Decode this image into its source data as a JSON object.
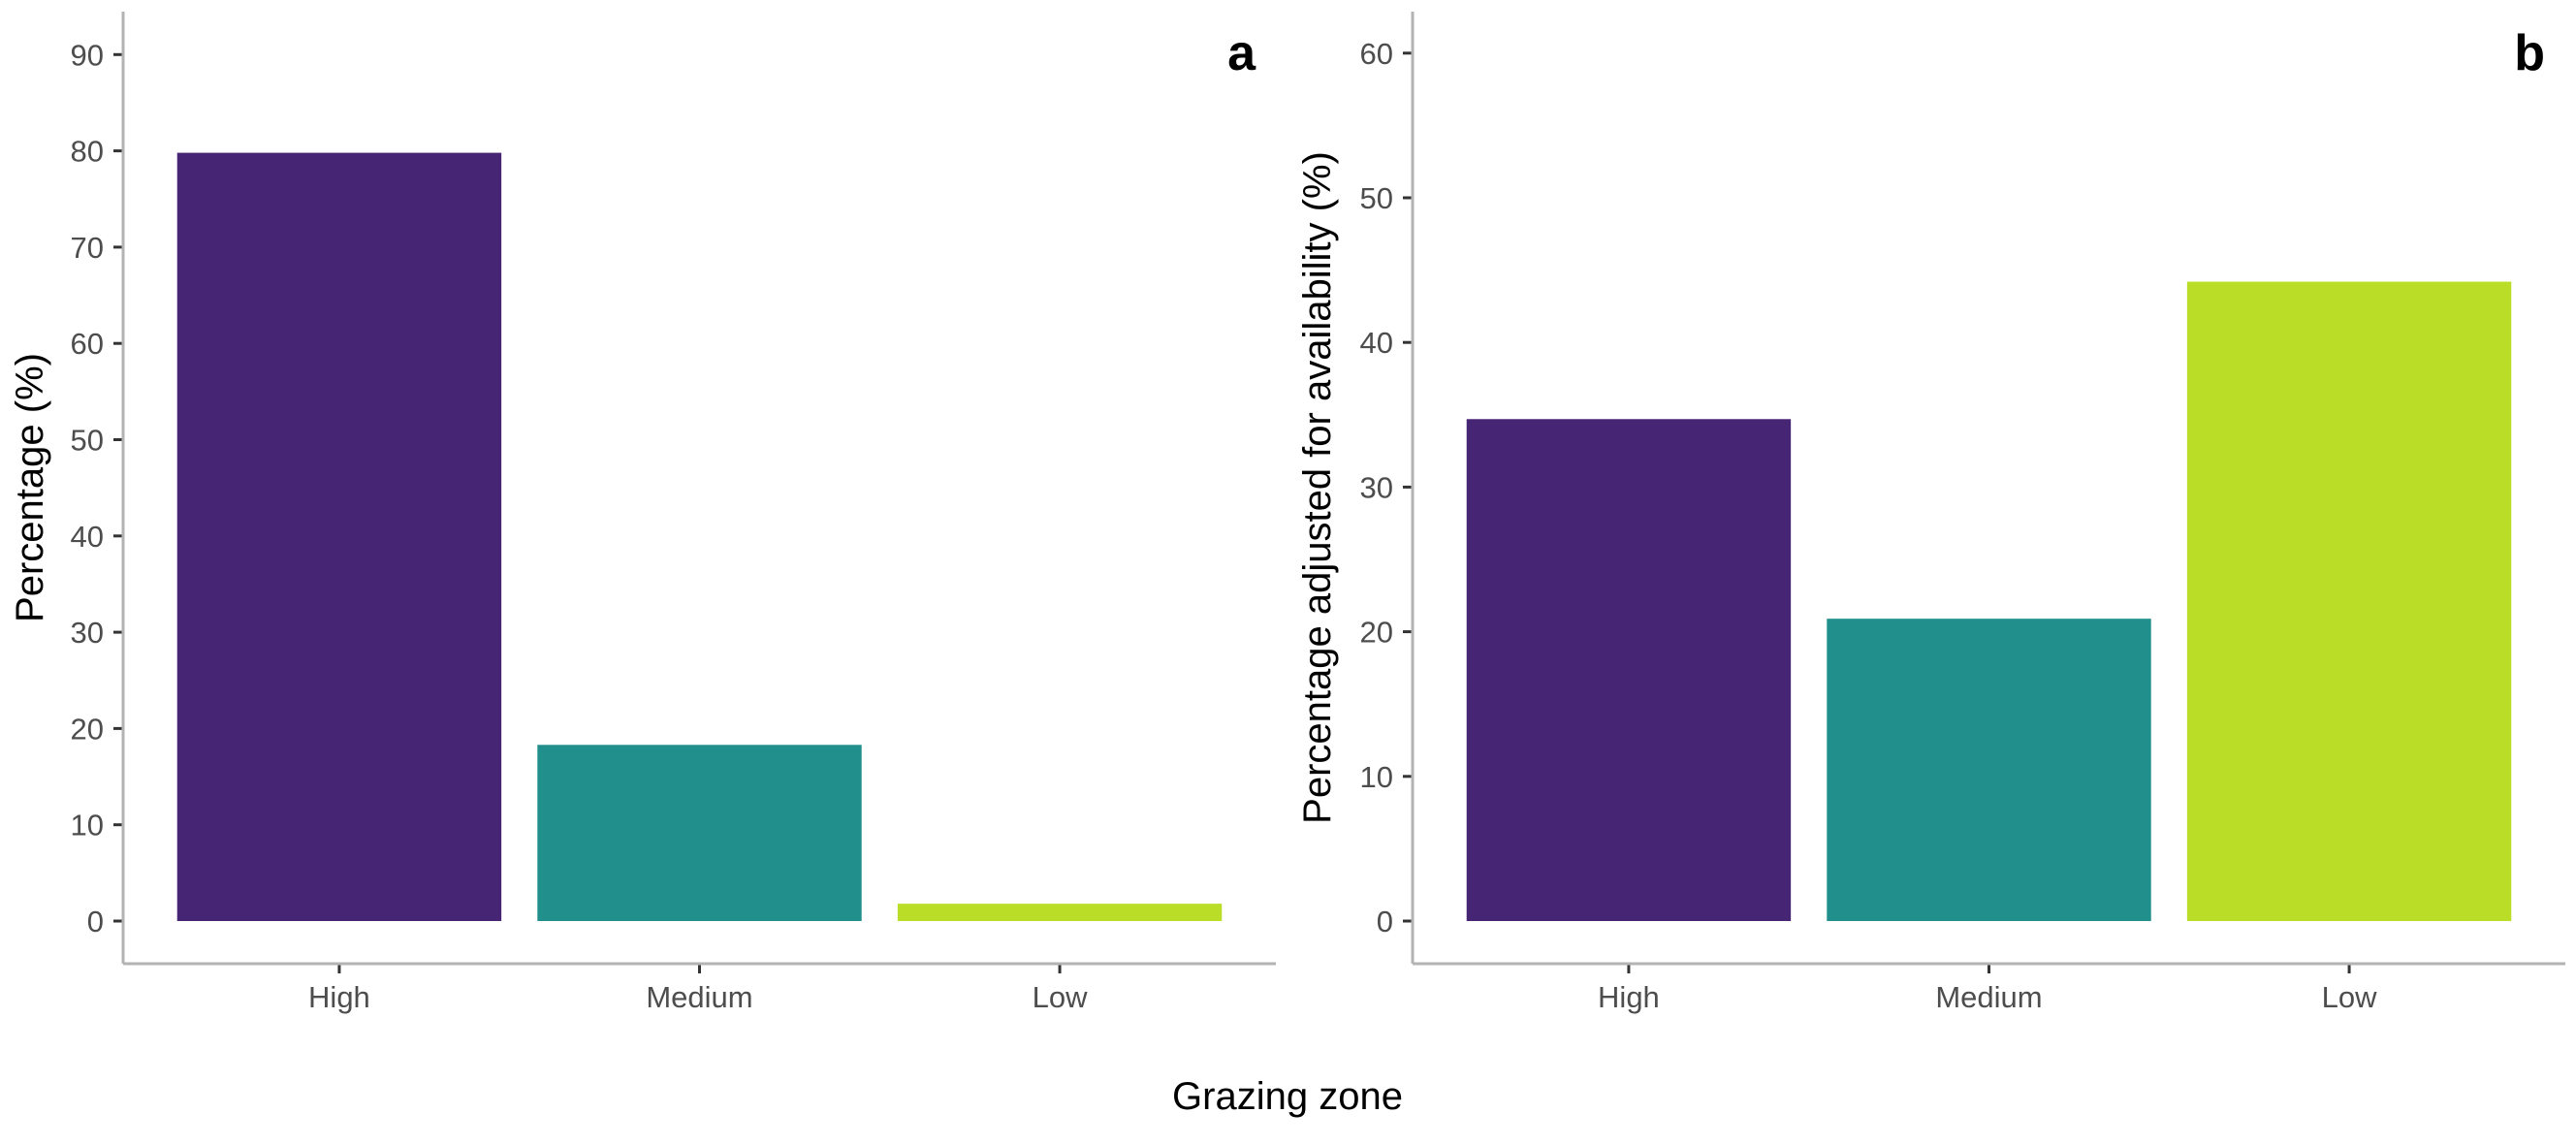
{
  "figure": {
    "shared_xlabel": "Grazing zone"
  },
  "chart_data": [
    {
      "type": "bar",
      "panel_label": "a",
      "categories": [
        "High",
        "Medium",
        "Low"
      ],
      "values": [
        79.8,
        18.3,
        1.8
      ],
      "colors": [
        "#472575",
        "#218F8B",
        "#BADE28"
      ],
      "title": "",
      "xlabel": "Grazing zone",
      "ylabel": "Percentage (%)",
      "ylim": [
        0,
        95
      ],
      "yticks": [
        0,
        10,
        20,
        30,
        40,
        50,
        60,
        70,
        80,
        90
      ],
      "grid": false,
      "legend": "none"
    },
    {
      "type": "bar",
      "panel_label": "b",
      "categories": [
        "High",
        "Medium",
        "Low"
      ],
      "values": [
        34.7,
        20.9,
        44.2
      ],
      "colors": [
        "#472575",
        "#218F8B",
        "#BADE28"
      ],
      "title": "",
      "xlabel": "Grazing zone",
      "ylabel": "Percentage adjusted for availability (%)",
      "ylim": [
        0,
        63
      ],
      "yticks": [
        0,
        10,
        20,
        30,
        40,
        50,
        60
      ],
      "grid": false,
      "legend": "none"
    }
  ]
}
